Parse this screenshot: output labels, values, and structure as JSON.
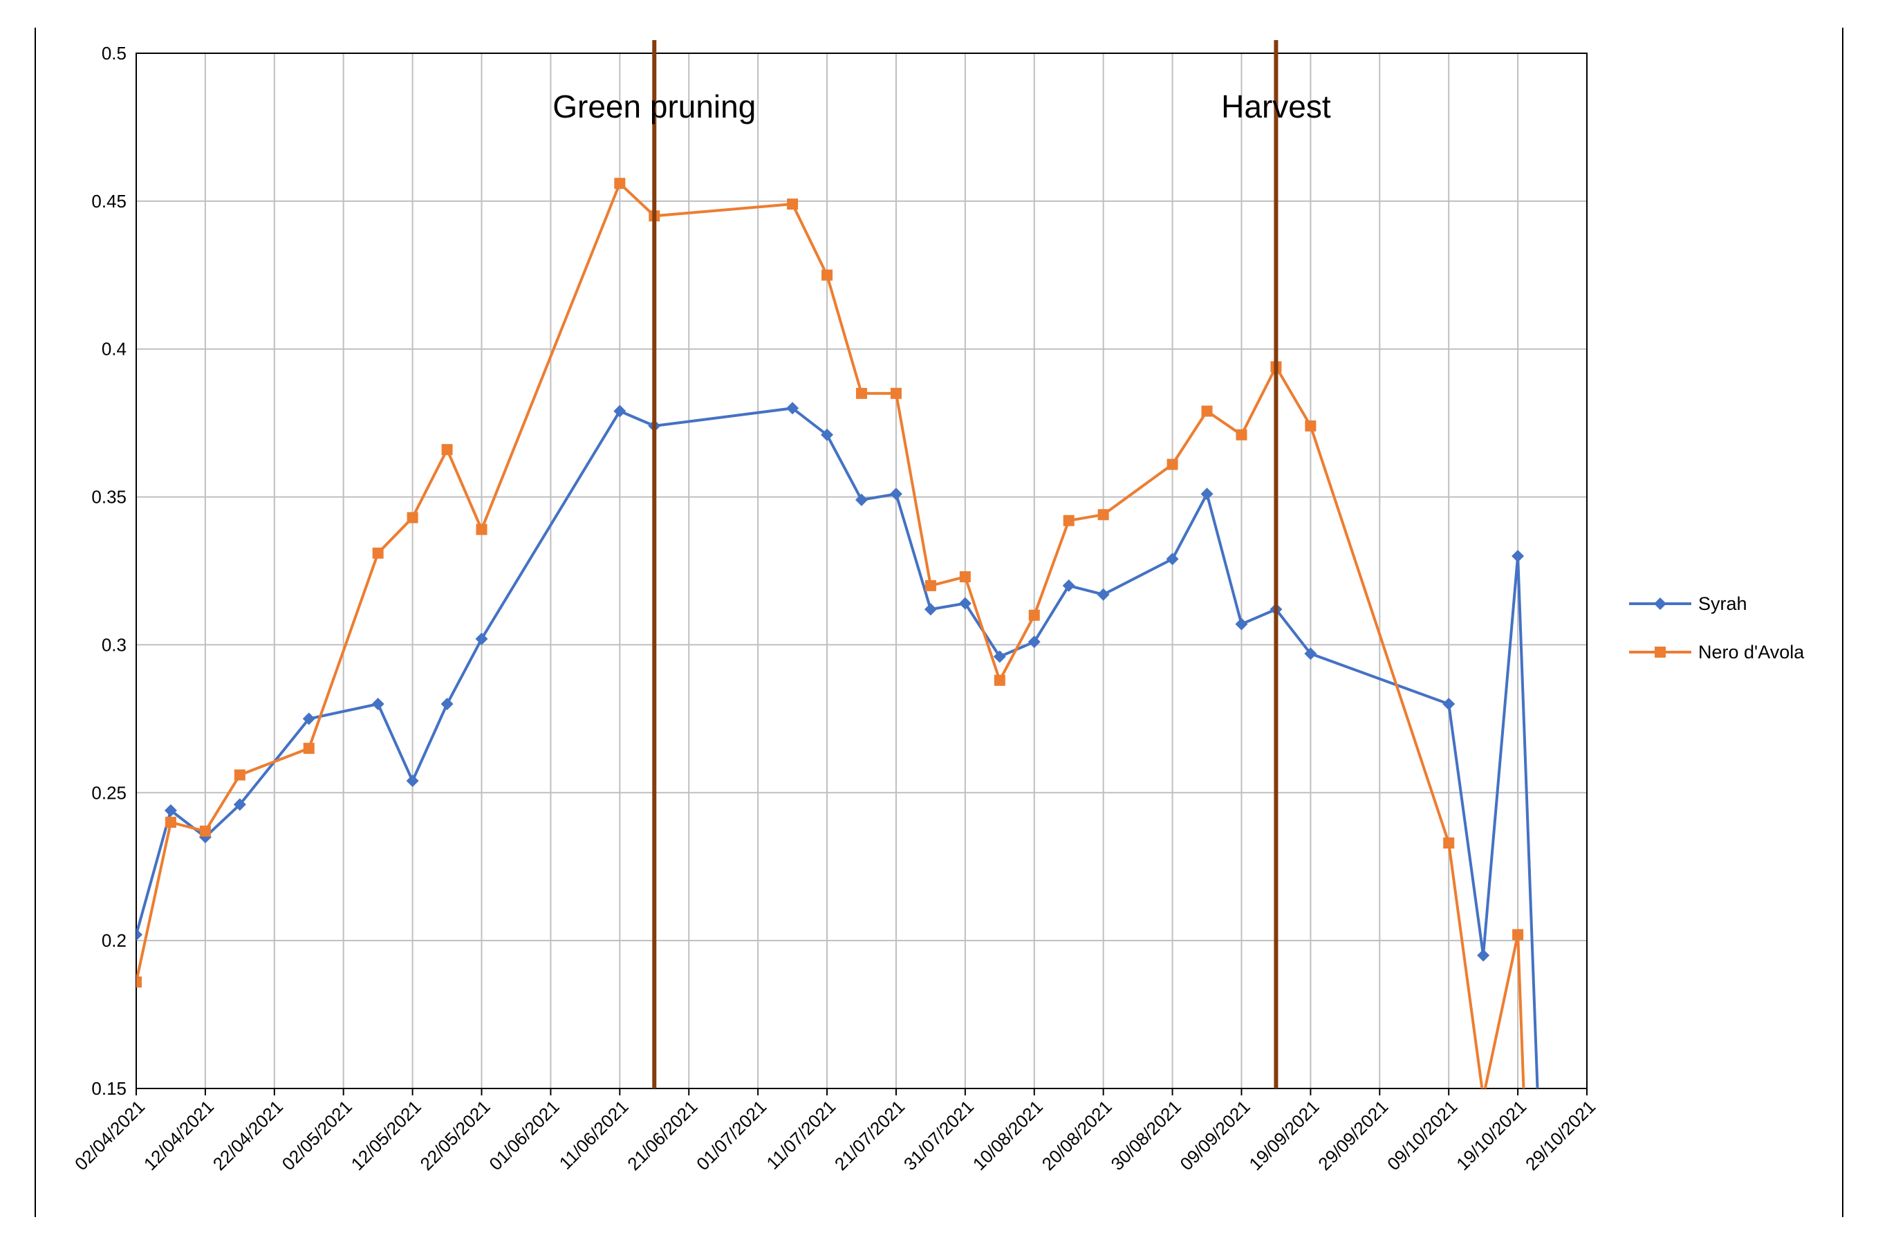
{
  "chart_data": {
    "type": "line",
    "title": "",
    "xlabel": "",
    "ylabel": "",
    "ylim": [
      0.15,
      0.5
    ],
    "xlim": [
      "02/04/2021",
      "29/10/2021"
    ],
    "yticks": [
      "0.15",
      "0.2",
      "0.25",
      "0.3",
      "0.35",
      "0.4",
      "0.45",
      "0.5"
    ],
    "xticks": [
      "02/04/2021",
      "12/04/2021",
      "22/04/2021",
      "02/05/2021",
      "12/05/2021",
      "22/05/2021",
      "01/06/2021",
      "11/06/2021",
      "21/06/2021",
      "01/07/2021",
      "11/07/2021",
      "21/07/2021",
      "31/07/2021",
      "10/08/2021",
      "20/08/2021",
      "30/08/2021",
      "09/09/2021",
      "19/09/2021",
      "29/09/2021",
      "09/10/2021",
      "19/10/2021",
      "29/10/2021"
    ],
    "grid": true,
    "legend_position": "right",
    "series": [
      {
        "name": "Syrah",
        "color": "#4472C4",
        "marker": "diamond",
        "x": [
          "02/04/2021",
          "07/04/2021",
          "12/04/2021",
          "17/04/2021",
          "27/04/2021",
          "07/05/2021",
          "12/05/2021",
          "17/05/2021",
          "22/05/2021",
          "11/06/2021",
          "16/06/2021",
          "06/07/2021",
          "11/07/2021",
          "16/07/2021",
          "21/07/2021",
          "26/07/2021",
          "31/07/2021",
          "05/08/2021",
          "10/08/2021",
          "15/08/2021",
          "20/08/2021",
          "30/08/2021",
          "04/09/2021",
          "09/09/2021",
          "14/09/2021",
          "19/09/2021",
          "09/10/2021",
          "14/10/2021",
          "19/10/2021",
          "22/10/2021"
        ],
        "y": [
          0.202,
          0.244,
          0.235,
          0.246,
          0.275,
          0.28,
          0.254,
          0.28,
          0.302,
          0.379,
          0.374,
          0.38,
          0.371,
          0.349,
          0.351,
          0.312,
          0.314,
          0.296,
          0.301,
          0.32,
          0.317,
          0.329,
          0.351,
          0.307,
          0.312,
          0.297,
          0.28,
          0.195,
          0.33,
          0.14
        ]
      },
      {
        "name": "Nero d'Avola",
        "color": "#ED7D31",
        "marker": "square",
        "x": [
          "02/04/2021",
          "07/04/2021",
          "12/04/2021",
          "17/04/2021",
          "27/04/2021",
          "07/05/2021",
          "12/05/2021",
          "17/05/2021",
          "22/05/2021",
          "11/06/2021",
          "16/06/2021",
          "06/07/2021",
          "11/07/2021",
          "16/07/2021",
          "21/07/2021",
          "26/07/2021",
          "31/07/2021",
          "05/08/2021",
          "10/08/2021",
          "15/08/2021",
          "20/08/2021",
          "30/08/2021",
          "04/09/2021",
          "09/09/2021",
          "14/09/2021",
          "19/09/2021",
          "09/10/2021",
          "14/10/2021",
          "19/10/2021",
          "20/10/2021"
        ],
        "y": [
          0.186,
          0.24,
          0.237,
          0.256,
          0.265,
          0.331,
          0.343,
          0.366,
          0.339,
          0.456,
          0.445,
          0.449,
          0.425,
          0.385,
          0.385,
          0.32,
          0.323,
          0.288,
          0.31,
          0.342,
          0.344,
          0.361,
          0.379,
          0.371,
          0.394,
          0.374,
          0.233,
          0.147,
          0.202,
          0.14
        ]
      }
    ],
    "annotations": [
      {
        "text": "Green pruning",
        "x": "16/06/2021",
        "type": "vertical-line",
        "color": "#843C0C"
      },
      {
        "text": "Harvest",
        "x": "14/09/2021",
        "type": "vertical-line",
        "color": "#843C0C"
      }
    ]
  }
}
